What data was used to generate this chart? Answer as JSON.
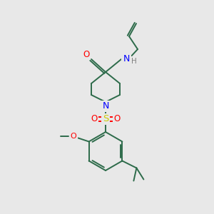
{
  "background_color": "#e8e8e8",
  "bond_color": "#2d6b4a",
  "atom_colors": {
    "O": "#ff0000",
    "N": "#0000ff",
    "S": "#cccc00",
    "H": "#808080",
    "C": "#2d6b4a"
  },
  "figsize": [
    3.0,
    3.0
  ],
  "dpi": 100
}
